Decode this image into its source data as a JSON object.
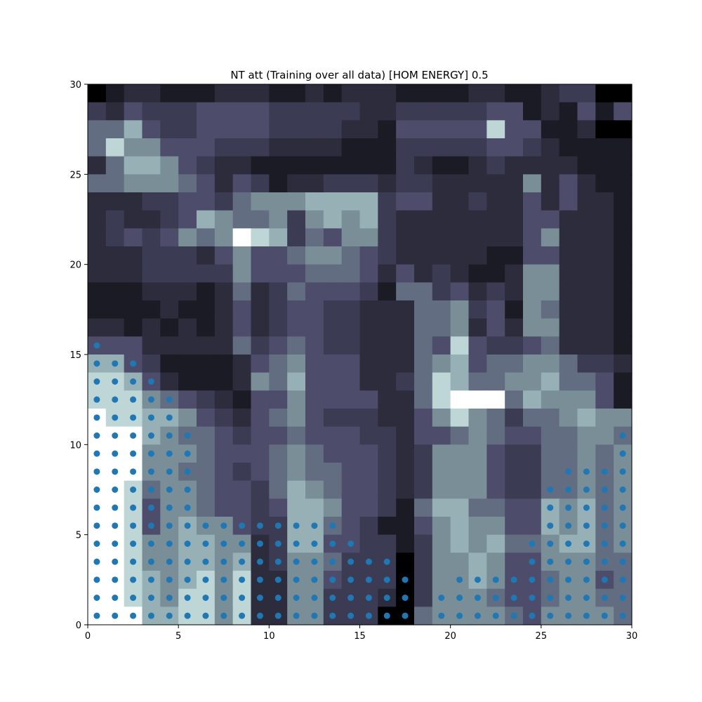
{
  "chart_data": {
    "type": "heatmap",
    "title": "NT att (Training over all data) [HOM ENERGY] 0.5",
    "xlim": [
      0,
      30
    ],
    "ylim": [
      0,
      30
    ],
    "x_ticks": [
      "0",
      "5",
      "10",
      "15",
      "20",
      "25",
      "30"
    ],
    "y_ticks": [
      "0",
      "5",
      "10",
      "15",
      "20",
      "25",
      "30"
    ],
    "colormap": "bone",
    "grid": false,
    "heatmap_rows_top_to_bottom": [
      "012211122211212221111221123300",
      "324333444433333223333344121414",
      "557433444433332214444484411200",
      "586644433322221113333344321111",
      "257764322111111113211232222111",
      "556665424312233323322222624211",
      "222334435666777734422322424221",
      "232234765563676732222222442221",
      "234346569873546632222222462221",
      "222333246445665432222211442221",
      "222333336444555424232112662221",
      "111222125235444315534232662221",
      "111121124234433222556341652221",
      "221212124234433222556242662221",
      "444222225345433222548433452221",
      "774311112456444222567455665332",
      "887421112657444223587556675541",
      "888654321446444422589995766641",
      "988776432456433322468653556766",
      "999765543445444332445654455665",
      "999666544456544432366643355656",
      "999665543456554432366643355656",
      "998566544357654432366643355656",
      "998466544347764431577554476756",
      "998467664337754311467664476756",
      "998667766237744331367675567756",
      "998667767236653330366764466655",
      "998767868226643330366764456645",
      "998768868226633320366654456655",
      "999778868226633300566665466665"
    ],
    "dot_color": "#1f77b4",
    "dot_rows_top_to_bottom": [
      "000000000000000000000000000000",
      "000000000000000000000000000000",
      "000000000000000000000000000000",
      "000000000000000000000000000000",
      "000000000000000000000000000000",
      "000000000000000000000000000000",
      "000000000000000000000000000000",
      "000000000000000000000000000000",
      "000000000000000000000000000000",
      "000000000000000000000000000000",
      "000000000000000000000000000000",
      "000000000000000000000000000000",
      "000000000000000000000000000000",
      "000000000000000000000000000000",
      "100000000000000000000000000000",
      "111000000000000000000000000000",
      "111100000000000000000000000000",
      "111110000000000000000000000000",
      "111110000000000000000000000000",
      "111111000000000000000000000001",
      "111111000000000000000000000001",
      "111111000000000000000000001111",
      "111111000000000000000000011111",
      "111111000000000000000000011111",
      "111111111111110000000000011111",
      "111111111111111000000000111111",
      "111111111111111110000000111111",
      "111111111111111111001111111111",
      "111111111111111111011111111111",
      "111111111111111111011111111111"
    ]
  }
}
